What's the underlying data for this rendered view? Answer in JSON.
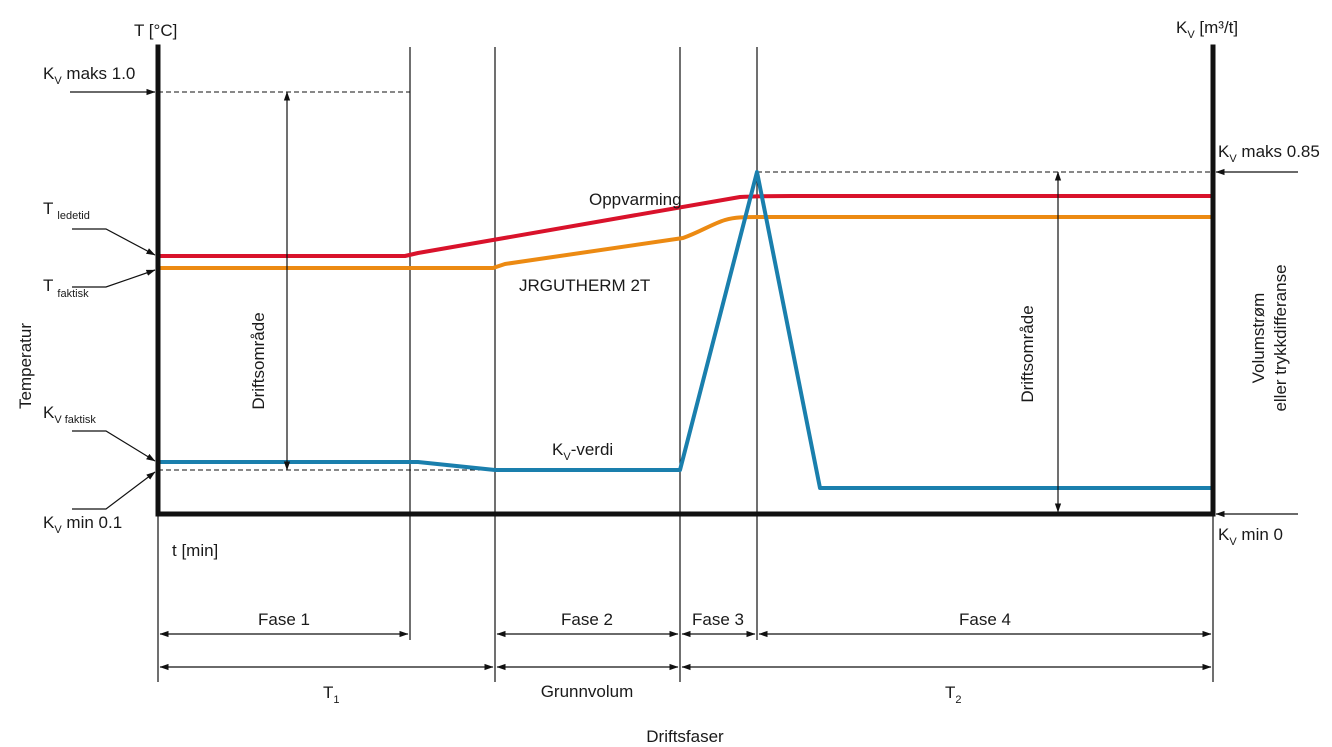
{
  "left_axis": {
    "unit_label": "T [°C]",
    "title": "Temperatur",
    "kv_max": {
      "main": "K",
      "sub": "V",
      "rest": " maks 1.0"
    },
    "t_lead": {
      "main": "T",
      "sub": "ledetid"
    },
    "t_actual": {
      "main": "T",
      "sub": "faktisk"
    },
    "kv_actual": {
      "main": "K",
      "sub": "V faktisk"
    },
    "kv_min": {
      "main": "K",
      "sub": "V",
      "rest": " min 0.1"
    }
  },
  "right_axis": {
    "unit_label": {
      "main": "K",
      "sub": "V",
      "rest": " [m³/t]"
    },
    "title_line1": "Volumstrøm",
    "title_line2": "eller trykkdifferanse",
    "kv_max": {
      "main": "K",
      "sub": "V",
      "rest": " maks 0.85"
    },
    "kv_min": {
      "main": "K",
      "sub": "V",
      "rest": " min 0"
    }
  },
  "time_axis_label": "t [min]",
  "operating_range_label": "Driftsområde",
  "curve_labels": {
    "heating": "Oppvarming",
    "product": "JRGUTHERM 2T",
    "kv": {
      "main": "K",
      "sub": "V",
      "rest": "-verdi"
    }
  },
  "phases": [
    "Fase 1",
    "Fase 2",
    "Fase 3",
    "Fase 4"
  ],
  "periods": {
    "t1": {
      "main": "T",
      "sub": "1"
    },
    "base": "Grunnvolum",
    "t2": {
      "main": "T",
      "sub": "2"
    }
  },
  "bottom_title": "Driftsfaser",
  "colors": {
    "heating": "#d9122b",
    "product": "#ec8a12",
    "kv": "#1a7fad",
    "axis": "#111111"
  }
}
